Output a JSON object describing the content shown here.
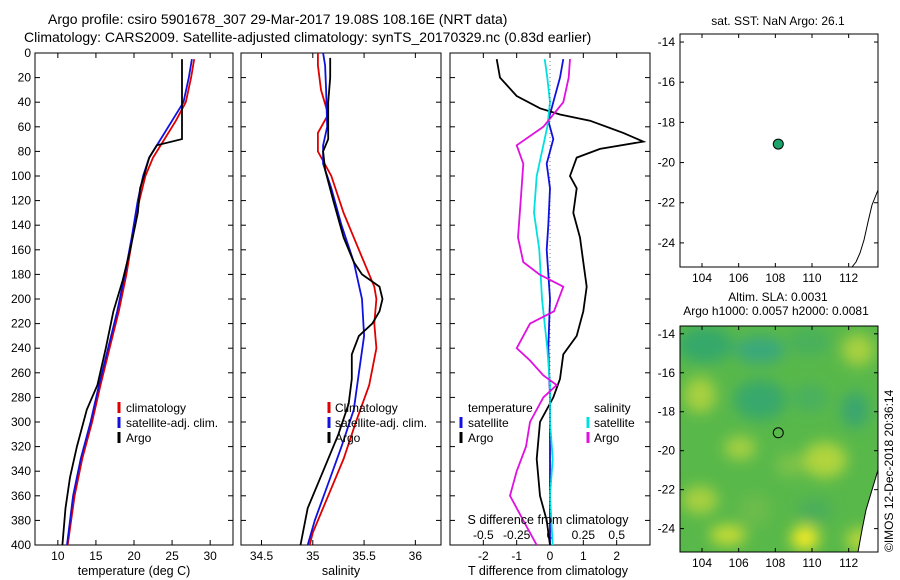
{
  "figure": {
    "title_line1": "Argo profile: csiro 5901678_307 29-Mar-2017 19.08S 108.16E (NRT data)",
    "title_line2": "Climatology: CARS2009. Satellite-adjusted climatology: synTS_20170329.nc (0.83d earlier)",
    "credit": "©IMOS 12-Dec-2018 20:36:14"
  },
  "colors": {
    "climatology": "#e00000",
    "satellite": "#1010e0",
    "argo": "#000000",
    "sal_satellite": "#00e0e0",
    "sal_argo": "#e010e0",
    "ocean": "#ffffff",
    "marker": "#1aa46a"
  },
  "chart_data": [
    {
      "id": "temperature",
      "type": "line",
      "xlabel": "temperature (deg C)",
      "xlim": [
        7,
        33
      ],
      "xticks": [
        10,
        15,
        20,
        25,
        30
      ],
      "ylim": [
        0,
        400
      ],
      "yticks": [
        0,
        20,
        40,
        60,
        80,
        100,
        120,
        140,
        160,
        180,
        200,
        220,
        240,
        260,
        280,
        300,
        320,
        340,
        360,
        380,
        400
      ],
      "legend": [
        "climatology",
        "satellite-adj. clim.",
        "Argo"
      ],
      "series": [
        {
          "name": "climatology",
          "color_key": "climatology",
          "points": [
            [
              27.9,
              5
            ],
            [
              27.5,
              20
            ],
            [
              26.8,
              40
            ],
            [
              25.5,
              55
            ],
            [
              24,
              70
            ],
            [
              22.5,
              85
            ],
            [
              21.5,
              100
            ],
            [
              20.7,
              120
            ],
            [
              19.8,
              150
            ],
            [
              19,
              180
            ],
            [
              18,
              210
            ],
            [
              16.8,
              240
            ],
            [
              15.6,
              270
            ],
            [
              14.5,
              300
            ],
            [
              13.2,
              330
            ],
            [
              12.2,
              360
            ],
            [
              11.3,
              400
            ]
          ]
        },
        {
          "name": "satellite-adj. clim.",
          "color_key": "satellite",
          "points": [
            [
              27.6,
              5
            ],
            [
              27.2,
              20
            ],
            [
              26.5,
              40
            ],
            [
              25,
              55
            ],
            [
              23.5,
              70
            ],
            [
              22,
              85
            ],
            [
              21.2,
              100
            ],
            [
              20.5,
              120
            ],
            [
              19.7,
              150
            ],
            [
              18.8,
              180
            ],
            [
              17.8,
              210
            ],
            [
              16.6,
              240
            ],
            [
              15.4,
              270
            ],
            [
              14.3,
              300
            ],
            [
              13,
              330
            ],
            [
              12,
              360
            ],
            [
              11.2,
              400
            ]
          ]
        },
        {
          "name": "Argo",
          "color_key": "argo",
          "points": [
            [
              26.3,
              5
            ],
            [
              26.3,
              40
            ],
            [
              26.3,
              70
            ],
            [
              23,
              75
            ],
            [
              22,
              85
            ],
            [
              21.3,
              100
            ],
            [
              20.8,
              110
            ],
            [
              20.5,
              130
            ],
            [
              19.5,
              160
            ],
            [
              18.5,
              185
            ],
            [
              17.3,
              210
            ],
            [
              16.3,
              240
            ],
            [
              15.2,
              270
            ],
            [
              13.8,
              290
            ],
            [
              12.5,
              320
            ],
            [
              11.6,
              345
            ],
            [
              11,
              370
            ],
            [
              10.6,
              400
            ]
          ]
        }
      ]
    },
    {
      "id": "salinity",
      "type": "line",
      "xlabel": "salinity",
      "xlim": [
        34.3,
        36.25
      ],
      "xticks": [
        34.5,
        35,
        35.5,
        36
      ],
      "ylim": [
        0,
        400
      ],
      "legend": [
        "Climatology",
        "satellite-adj. clim.",
        "Argo"
      ],
      "series": [
        {
          "name": "Climatology",
          "color_key": "climatology",
          "points": [
            [
              35.05,
              0
            ],
            [
              35.05,
              10
            ],
            [
              35.08,
              30
            ],
            [
              35.15,
              50
            ],
            [
              35.05,
              65
            ],
            [
              35.05,
              80
            ],
            [
              35.18,
              100
            ],
            [
              35.3,
              130
            ],
            [
              35.45,
              160
            ],
            [
              35.6,
              190
            ],
            [
              35.62,
              200
            ],
            [
              35.6,
              220
            ],
            [
              35.62,
              240
            ],
            [
              35.55,
              270
            ],
            [
              35.42,
              300
            ],
            [
              35.3,
              330
            ],
            [
              35.15,
              360
            ],
            [
              35,
              390
            ],
            [
              34.97,
              400
            ]
          ]
        },
        {
          "name": "satellite-adj. clim.",
          "color_key": "satellite",
          "points": [
            [
              35.1,
              0
            ],
            [
              35.12,
              10
            ],
            [
              35.13,
              30
            ],
            [
              35.14,
              60
            ],
            [
              35.1,
              75
            ],
            [
              35.1,
              90
            ],
            [
              35.18,
              110
            ],
            [
              35.28,
              140
            ],
            [
              35.4,
              170
            ],
            [
              35.48,
              200
            ],
            [
              35.5,
              230
            ],
            [
              35.45,
              260
            ],
            [
              35.4,
              290
            ],
            [
              35.28,
              320
            ],
            [
              35.15,
              350
            ],
            [
              35.02,
              380
            ],
            [
              34.95,
              400
            ]
          ]
        },
        {
          "name": "Argo",
          "color_key": "argo",
          "points": [
            [
              35.17,
              4
            ],
            [
              35.17,
              20
            ],
            [
              35.15,
              40
            ],
            [
              35.15,
              70
            ],
            [
              35.1,
              80
            ],
            [
              35.12,
              95
            ],
            [
              35.2,
              120
            ],
            [
              35.3,
              150
            ],
            [
              35.4,
              170
            ],
            [
              35.48,
              180
            ],
            [
              35.65,
              190
            ],
            [
              35.68,
              200
            ],
            [
              35.65,
              210
            ],
            [
              35.58,
              220
            ],
            [
              35.45,
              230
            ],
            [
              35.38,
              245
            ],
            [
              35.38,
              265
            ],
            [
              35.35,
              285
            ],
            [
              35.25,
              310
            ],
            [
              35.1,
              340
            ],
            [
              34.95,
              370
            ],
            [
              34.88,
              400
            ]
          ]
        }
      ]
    },
    {
      "id": "differences",
      "type": "line",
      "xlabel": "T difference from climatology",
      "xlim": [
        -3,
        3
      ],
      "xticks": [
        -2,
        -1,
        0,
        1,
        2
      ],
      "x2label": "S difference from climatology",
      "x2ticks": [
        "-0.5",
        "-0.25",
        "0",
        "0.25",
        "0.5"
      ],
      "ylim": [
        0,
        400
      ],
      "legend_temperature_title": "temperature",
      "legend_salinity_title": "salinity",
      "legend_temperature": [
        "satellite",
        "Argo"
      ],
      "legend_salinity": [
        "satellite",
        "Argo"
      ],
      "series": [
        {
          "name": "temperature satellite",
          "color_key": "satellite",
          "points": [
            [
              0.4,
              5
            ],
            [
              0.3,
              20
            ],
            [
              0.1,
              40
            ],
            [
              -0.05,
              55
            ],
            [
              0.1,
              70
            ],
            [
              -0.1,
              90
            ],
            [
              0,
              110
            ],
            [
              -0.05,
              140
            ],
            [
              -0.1,
              160
            ],
            [
              0,
              200
            ],
            [
              -0.05,
              240
            ],
            [
              0,
              280
            ],
            [
              0,
              320
            ],
            [
              0,
              360
            ],
            [
              0,
              400
            ]
          ]
        },
        {
          "name": "temperature Argo",
          "color_key": "argo",
          "points": [
            [
              -1.6,
              5
            ],
            [
              -1.5,
              20
            ],
            [
              -1,
              35
            ],
            [
              -0.3,
              45
            ],
            [
              0.3,
              50
            ],
            [
              1.2,
              55
            ],
            [
              2.2,
              65
            ],
            [
              2.8,
              72
            ],
            [
              1.5,
              78
            ],
            [
              0.8,
              85
            ],
            [
              0.6,
              100
            ],
            [
              0.8,
              110
            ],
            [
              0.7,
              130
            ],
            [
              0.9,
              150
            ],
            [
              1,
              170
            ],
            [
              1.1,
              190
            ],
            [
              1,
              210
            ],
            [
              0.8,
              230
            ],
            [
              0.4,
              245
            ],
            [
              0.3,
              265
            ],
            [
              0.1,
              280
            ],
            [
              -0.3,
              300
            ],
            [
              -0.4,
              330
            ],
            [
              -0.3,
              360
            ],
            [
              -0.1,
              380
            ],
            [
              0,
              400
            ]
          ]
        },
        {
          "name": "salinity satellite",
          "color_key": "sal_satellite",
          "points": [
            [
              -0.04,
              5
            ],
            [
              -0.02,
              20
            ],
            [
              0,
              40
            ],
            [
              -0.02,
              60
            ],
            [
              -0.06,
              80
            ],
            [
              -0.1,
              100
            ],
            [
              -0.12,
              130
            ],
            [
              -0.08,
              160
            ],
            [
              -0.06,
              200
            ],
            [
              -0.02,
              240
            ],
            [
              0,
              270
            ],
            [
              0,
              300
            ],
            [
              0.02,
              330
            ],
            [
              0,
              360
            ],
            [
              0.02,
              400
            ]
          ]
        },
        {
          "name": "salinity Argo",
          "color_key": "sal_argo",
          "points": [
            [
              0.15,
              5
            ],
            [
              0.14,
              20
            ],
            [
              0.1,
              40
            ],
            [
              -0.05,
              60
            ],
            [
              -0.25,
              75
            ],
            [
              -0.2,
              90
            ],
            [
              -0.22,
              120
            ],
            [
              -0.24,
              150
            ],
            [
              -0.2,
              170
            ],
            [
              -0.08,
              180
            ],
            [
              0.1,
              190
            ],
            [
              0.03,
              210
            ],
            [
              -0.15,
              220
            ],
            [
              -0.25,
              240
            ],
            [
              -0.15,
              250
            ],
            [
              -0.05,
              262
            ],
            [
              0.05,
              270
            ],
            [
              -0.05,
              280
            ],
            [
              -0.15,
              300
            ],
            [
              -0.18,
              320
            ],
            [
              -0.25,
              340
            ],
            [
              -0.3,
              360
            ],
            [
              -0.2,
              380
            ],
            [
              -0.1,
              400
            ]
          ]
        }
      ]
    },
    {
      "id": "sst_map",
      "type": "scatter",
      "title": "sat. SST: NaN Argo: 26.1",
      "xlim": [
        102.8,
        113.6
      ],
      "ylim": [
        -25.2,
        -13.6
      ],
      "xticks": [
        104,
        106,
        108,
        110,
        112
      ],
      "yticks": [
        -14,
        -16,
        -18,
        -20,
        -22,
        -24
      ],
      "marker": [
        108.16,
        -19.08
      ]
    },
    {
      "id": "sla_map",
      "type": "heatmap",
      "title_line1": "Altim. SLA: 0.0031",
      "title_line2": "Argo h1000: 0.0057 h2000: 0.0081",
      "xlim": [
        102.8,
        113.6
      ],
      "ylim": [
        -25.2,
        -13.6
      ],
      "xticks": [
        104,
        106,
        108,
        110,
        112
      ],
      "yticks": [
        -14,
        -16,
        -18,
        -20,
        -22,
        -24
      ],
      "marker": [
        108.16,
        -19.08
      ]
    }
  ]
}
